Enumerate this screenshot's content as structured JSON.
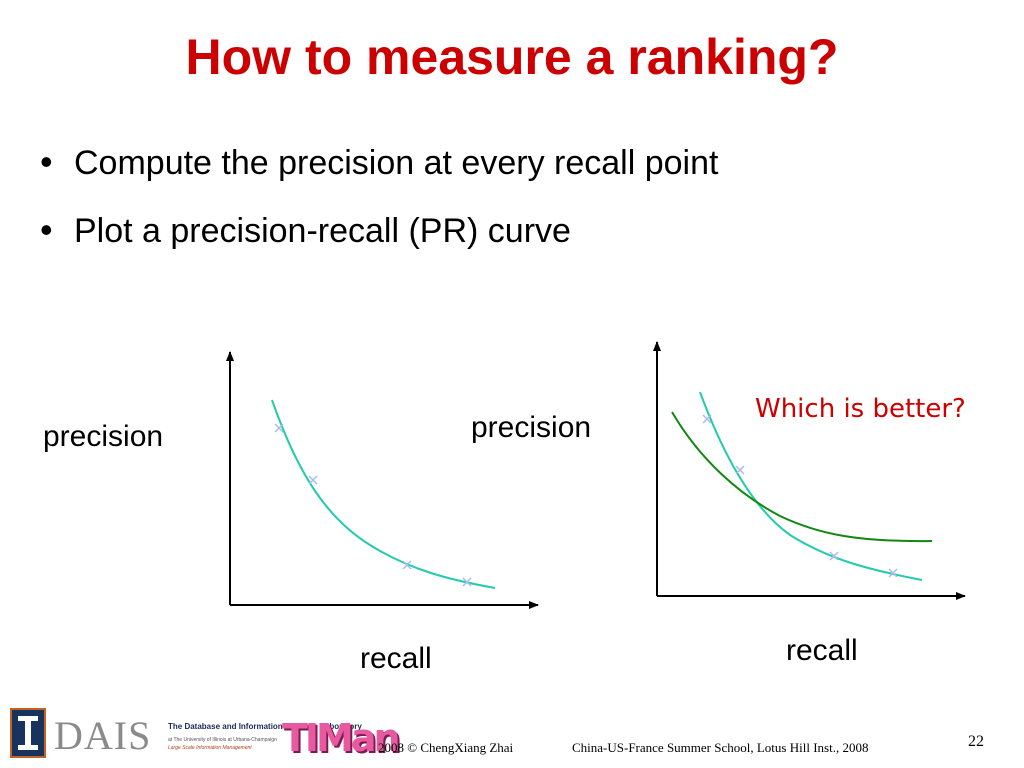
{
  "slide": {
    "title": "How to measure a ranking?",
    "bullets": [
      "Compute the precision at every recall point",
      "Plot a precision-recall (PR) curve"
    ],
    "bullet_glyph": "•"
  },
  "figures": {
    "left": {
      "ylabel": "precision",
      "xlabel": "recall"
    },
    "right": {
      "ylabel": "precision",
      "xlabel": "recall",
      "annotation": "Which is better?"
    }
  },
  "colors": {
    "title": "#cc0000",
    "curve_teal": "#22ccaa",
    "curve_green": "#118811",
    "marker": "#aabbee",
    "annotation": "#cc0000"
  },
  "footer": {
    "copyright": "2008  © ChengXiang Zhai",
    "event": "China-US-France Summer School, Lotus Hill Inst., 2008",
    "page_number": "22",
    "dais_logo": "DAIS",
    "dais_name": "The Database and Information Systems Laboratory",
    "dais_affiliation": "at The University of Illinois at Urbana-Champaign",
    "dais_tagline": "Large Scale Information Management",
    "timan_logo": "TIMan"
  }
}
